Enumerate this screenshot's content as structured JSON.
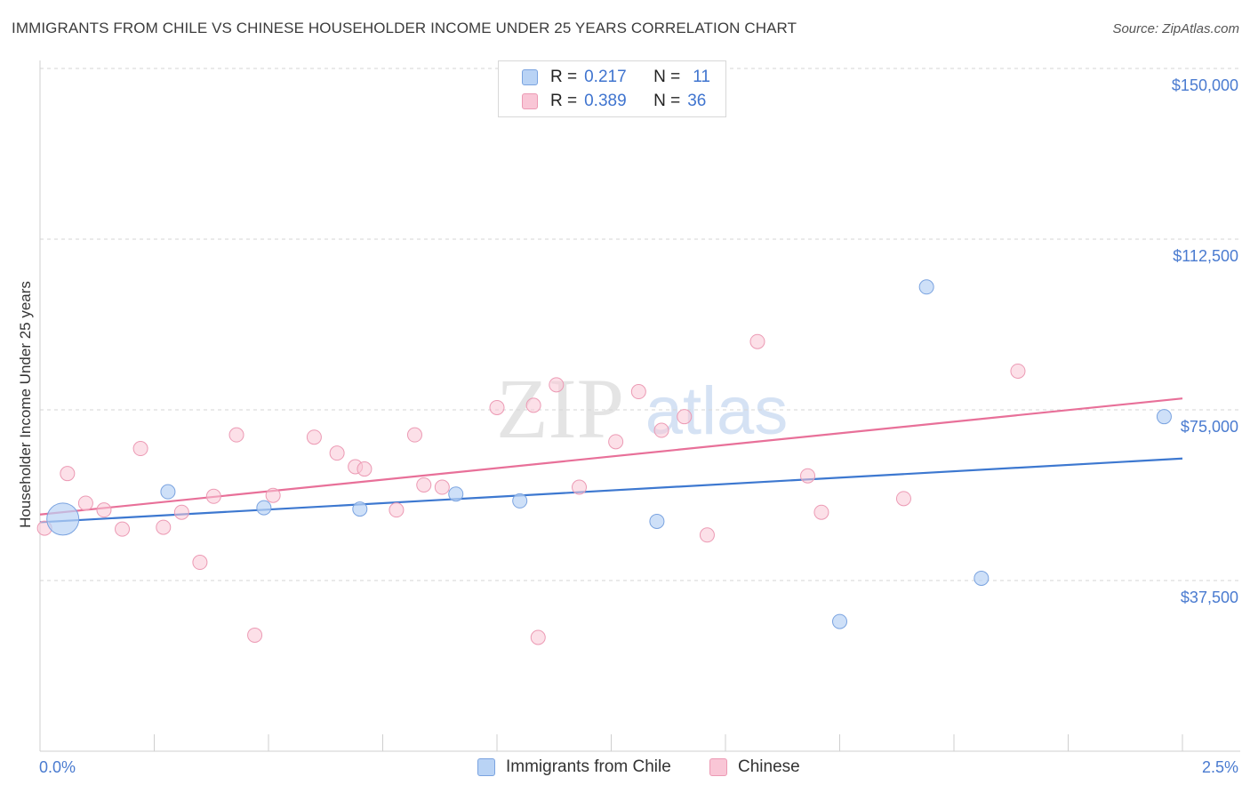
{
  "title": "IMMIGRANTS FROM CHILE VS CHINESE HOUSEHOLDER INCOME UNDER 25 YEARS CORRELATION CHART",
  "source": "Source: ZipAtlas.com",
  "watermark": {
    "zip": "ZIP",
    "atlas": "atlas"
  },
  "legend": {
    "rows": [
      {
        "r_label": "R =",
        "r_value": "0.217",
        "n_label": "N =",
        "n_value": "11"
      },
      {
        "r_label": "R =",
        "r_value": "0.389",
        "n_label": "N =",
        "n_value": "36"
      }
    ]
  },
  "bottom_legend": [
    "Immigrants from Chile",
    "Chinese"
  ],
  "colors": {
    "chile_fill": "#b9d3f5",
    "chile_stroke": "#7aa3e0",
    "chile_line": "#3d78d0",
    "chinese_fill": "#f9c6d6",
    "chinese_stroke": "#ec9ab4",
    "chinese_line": "#e87099",
    "tick_text": "#4a7bd0",
    "grid": "#d6d6d6"
  },
  "chart_data": {
    "type": "scatter",
    "title": "IMMIGRANTS FROM CHILE VS CHINESE HOUSEHOLDER INCOME UNDER 25 YEARS CORRELATION CHART",
    "xlabel": "",
    "ylabel": "Householder Income Under 25 years",
    "xlim": [
      0,
      2.5
    ],
    "ylim": [
      0,
      150000
    ],
    "x_tick_labels": [
      "0.0%",
      "2.5%"
    ],
    "y_ticks": [
      37500,
      75000,
      112500,
      150000
    ],
    "y_tick_labels": [
      "$37,500",
      "$75,000",
      "$112,500",
      "$150,000"
    ],
    "grid": "horizontal dashed",
    "legend_position": "top-center",
    "series": [
      {
        "name": "Immigrants from Chile",
        "R": 0.217,
        "N": 11,
        "trend": {
          "x": [
            0,
            2.5
          ],
          "y": [
            50300,
            64300
          ]
        },
        "points": [
          {
            "x": 0.05,
            "y": 51000,
            "large": true
          },
          {
            "x": 0.28,
            "y": 57000
          },
          {
            "x": 0.49,
            "y": 53500
          },
          {
            "x": 0.7,
            "y": 53200
          },
          {
            "x": 0.91,
            "y": 56500
          },
          {
            "x": 1.05,
            "y": 55000
          },
          {
            "x": 1.35,
            "y": 50500
          },
          {
            "x": 1.75,
            "y": 28500
          },
          {
            "x": 1.94,
            "y": 102000
          },
          {
            "x": 2.06,
            "y": 38000
          },
          {
            "x": 2.46,
            "y": 73500
          }
        ]
      },
      {
        "name": "Chinese",
        "R": 0.389,
        "N": 36,
        "trend": {
          "x": [
            0,
            2.5
          ],
          "y": [
            52000,
            77500
          ]
        },
        "points": [
          {
            "x": 0.01,
            "y": 49000
          },
          {
            "x": 0.06,
            "y": 61000
          },
          {
            "x": 0.1,
            "y": 54500
          },
          {
            "x": 0.14,
            "y": 53000
          },
          {
            "x": 0.18,
            "y": 48800
          },
          {
            "x": 0.22,
            "y": 66500
          },
          {
            "x": 0.27,
            "y": 49200
          },
          {
            "x": 0.31,
            "y": 52500
          },
          {
            "x": 0.35,
            "y": 41500
          },
          {
            "x": 0.38,
            "y": 56000
          },
          {
            "x": 0.43,
            "y": 69500
          },
          {
            "x": 0.47,
            "y": 25500
          },
          {
            "x": 0.51,
            "y": 56200
          },
          {
            "x": 0.6,
            "y": 69000
          },
          {
            "x": 0.65,
            "y": 65500
          },
          {
            "x": 0.69,
            "y": 62500
          },
          {
            "x": 0.71,
            "y": 62000
          },
          {
            "x": 0.78,
            "y": 53000
          },
          {
            "x": 0.82,
            "y": 69500
          },
          {
            "x": 0.84,
            "y": 58500
          },
          {
            "x": 0.88,
            "y": 58000
          },
          {
            "x": 1.0,
            "y": 75500
          },
          {
            "x": 1.08,
            "y": 76000
          },
          {
            "x": 1.09,
            "y": 25000
          },
          {
            "x": 1.13,
            "y": 80500
          },
          {
            "x": 1.18,
            "y": 58000
          },
          {
            "x": 1.26,
            "y": 68000
          },
          {
            "x": 1.31,
            "y": 79000
          },
          {
            "x": 1.36,
            "y": 70500
          },
          {
            "x": 1.41,
            "y": 73500
          },
          {
            "x": 1.46,
            "y": 47500
          },
          {
            "x": 1.57,
            "y": 90000
          },
          {
            "x": 1.68,
            "y": 60500
          },
          {
            "x": 1.71,
            "y": 52500
          },
          {
            "x": 1.89,
            "y": 55500
          },
          {
            "x": 2.14,
            "y": 83500
          }
        ]
      }
    ]
  }
}
